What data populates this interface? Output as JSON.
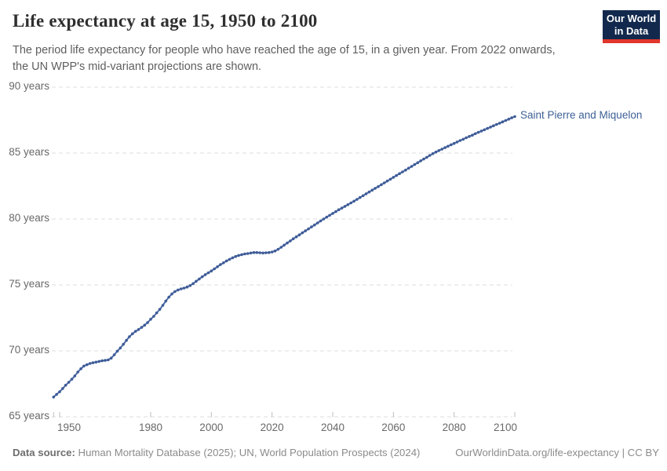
{
  "header": {
    "title": "Life expectancy at age 15, 1950 to 2100",
    "subtitle": "The period life expectancy for people who have reached the age of 15, in a given year. From 2022 onwards, the UN WPP's mid-variant projections are shown.",
    "logo_line1": "Our World",
    "logo_line2": "in Data"
  },
  "colors": {
    "line": "#4e6ba3",
    "dot": "#3f5c98",
    "end_label": "#3d5f96",
    "logo_bg": "#12294d",
    "logo_accent": "#e0362c"
  },
  "chart_data": {
    "type": "line",
    "title": "Life expectancy at age 15, 1950 to 2100",
    "xlabel": "",
    "ylabel": "",
    "xlim": [
      1948,
      2100
    ],
    "ylim": [
      65,
      90
    ],
    "grid": "horizontal-dashed",
    "legend_position": "end-of-line-label",
    "projection_note": "values from 2022 onwards are UN WPP mid-variant projections",
    "x_ticks": [
      {
        "value": 1950,
        "label": "1950"
      },
      {
        "value": 1980,
        "label": "1980"
      },
      {
        "value": 2000,
        "label": "2000"
      },
      {
        "value": 2020,
        "label": "2020"
      },
      {
        "value": 2040,
        "label": "2040"
      },
      {
        "value": 2060,
        "label": "2060"
      },
      {
        "value": 2080,
        "label": "2080"
      },
      {
        "value": 2100,
        "label": "2100"
      }
    ],
    "y_ticks": [
      {
        "value": 65,
        "label": "65 years"
      },
      {
        "value": 70,
        "label": "70 years"
      },
      {
        "value": 75,
        "label": "75 years"
      },
      {
        "value": 80,
        "label": "80 years"
      },
      {
        "value": 85,
        "label": "85 years"
      },
      {
        "value": 90,
        "label": "90 years"
      }
    ],
    "series": [
      {
        "name": "Saint Pierre and Miquelon",
        "x_range": {
          "start": 1948,
          "end": 2100,
          "step": 1
        },
        "values": [
          66.5,
          66.7,
          66.9,
          67.15,
          67.4,
          67.62,
          67.85,
          68.1,
          68.4,
          68.65,
          68.85,
          68.95,
          69.05,
          69.1,
          69.15,
          69.2,
          69.25,
          69.28,
          69.32,
          69.45,
          69.7,
          69.98,
          70.22,
          70.5,
          70.8,
          71.08,
          71.3,
          71.48,
          71.62,
          71.78,
          71.95,
          72.15,
          72.4,
          72.62,
          72.88,
          73.15,
          73.45,
          73.78,
          74.08,
          74.32,
          74.5,
          74.62,
          74.7,
          74.76,
          74.84,
          74.95,
          75.1,
          75.28,
          75.45,
          75.62,
          75.78,
          75.92,
          76.06,
          76.22,
          76.38,
          76.54,
          76.68,
          76.82,
          76.94,
          77.06,
          77.16,
          77.24,
          77.3,
          77.35,
          77.38,
          77.42,
          77.46,
          77.46,
          77.44,
          77.42,
          77.44,
          77.46,
          77.5,
          77.58,
          77.7,
          77.86,
          78.02,
          78.18,
          78.34,
          78.5,
          78.65,
          78.8,
          78.95,
          79.1,
          79.25,
          79.4,
          79.55,
          79.7,
          79.85,
          80.0,
          80.14,
          80.28,
          80.42,
          80.56,
          80.7,
          80.83,
          80.96,
          81.09,
          81.22,
          81.35,
          81.49,
          81.63,
          81.77,
          81.91,
          82.05,
          82.19,
          82.33,
          82.46,
          82.6,
          82.74,
          82.88,
          83.02,
          83.16,
          83.3,
          83.44,
          83.57,
          83.71,
          83.85,
          83.99,
          84.13,
          84.27,
          84.41,
          84.55,
          84.68,
          84.82,
          84.96,
          85.08,
          85.19,
          85.3,
          85.41,
          85.52,
          85.63,
          85.73,
          85.84,
          85.95,
          86.05,
          86.16,
          86.26,
          86.36,
          86.47,
          86.57,
          86.67,
          86.77,
          86.87,
          86.97,
          87.07,
          87.17,
          87.27,
          87.37,
          87.47,
          87.57,
          87.67,
          87.77
        ]
      }
    ]
  },
  "footer": {
    "source_label": "Data source:",
    "source_text": " Human Mortality Database (2025); UN, World Population Prospects (2024)",
    "link": "OurWorldinData.org/life-expectancy | CC BY"
  }
}
